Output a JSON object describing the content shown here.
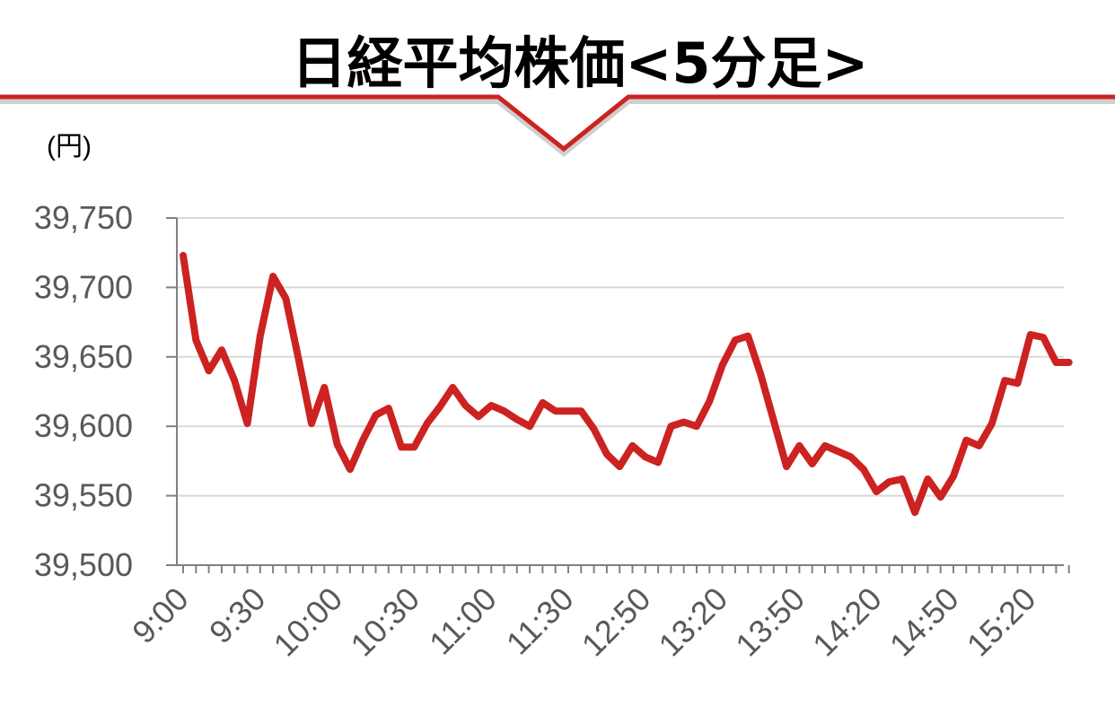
{
  "chart_data": {
    "type": "line",
    "title": "日経平均株価<5分足>",
    "unit_label": "(円)",
    "ylim": [
      39500,
      39750
    ],
    "y_ticks": [
      "39,500",
      "39,550",
      "39,600",
      "39,650",
      "39,700",
      "39,750"
    ],
    "y_tick_values": [
      39500,
      39550,
      39600,
      39650,
      39700,
      39750
    ],
    "x_tick_labels": [
      "9:00",
      "9:30",
      "10:00",
      "10:30",
      "11:00",
      "11:30",
      "12:50",
      "13:20",
      "13:50",
      "14:20",
      "14:50",
      "15:20"
    ],
    "x_tick_indices": [
      0,
      6,
      12,
      18,
      24,
      30,
      36,
      42,
      48,
      54,
      60,
      66
    ],
    "grid": true,
    "series_color": "#cc2222",
    "accent_color": "#cc2222",
    "series": [
      {
        "values": [
          39723,
          39662,
          39640,
          39655,
          39633,
          39602,
          39665,
          39708,
          39692,
          39648,
          39602,
          39628,
          39587,
          39569,
          39590,
          39608,
          39613,
          39585,
          39585,
          39602,
          39614,
          39628,
          39615,
          39607,
          39615,
          39611,
          39605,
          39600,
          39617,
          39611,
          39611,
          39611,
          39598,
          39580,
          39571,
          39586,
          39578,
          39574,
          39600,
          39603,
          39600,
          39618,
          39644,
          39662,
          39665,
          39637,
          39604,
          39571,
          39586,
          39573,
          39586,
          39582,
          39578,
          39569,
          39553,
          39560,
          39562,
          39538,
          39562,
          39549,
          39564,
          39590,
          39586,
          39602,
          39633,
          39631,
          39666,
          39664,
          39646,
          39646
        ]
      }
    ]
  }
}
